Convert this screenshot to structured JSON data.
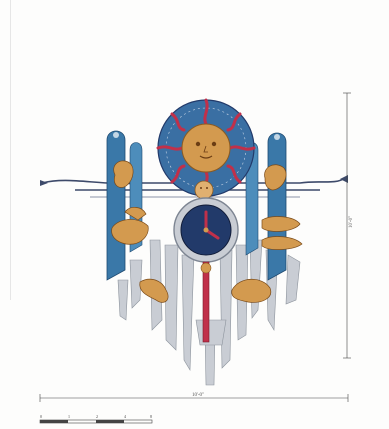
{
  "drawing": {
    "width_dimension": "10'-0\"",
    "height_dimension": "10'-0\"",
    "scale_bar_ticks": [
      "0",
      "1",
      "2",
      "4",
      "8"
    ],
    "palette": {
      "blue": "#3a78a8",
      "dark_blue": "#223a6a",
      "gold": "#d39a4f",
      "red": "#c0304a",
      "silver": "#bfc4cc"
    }
  }
}
